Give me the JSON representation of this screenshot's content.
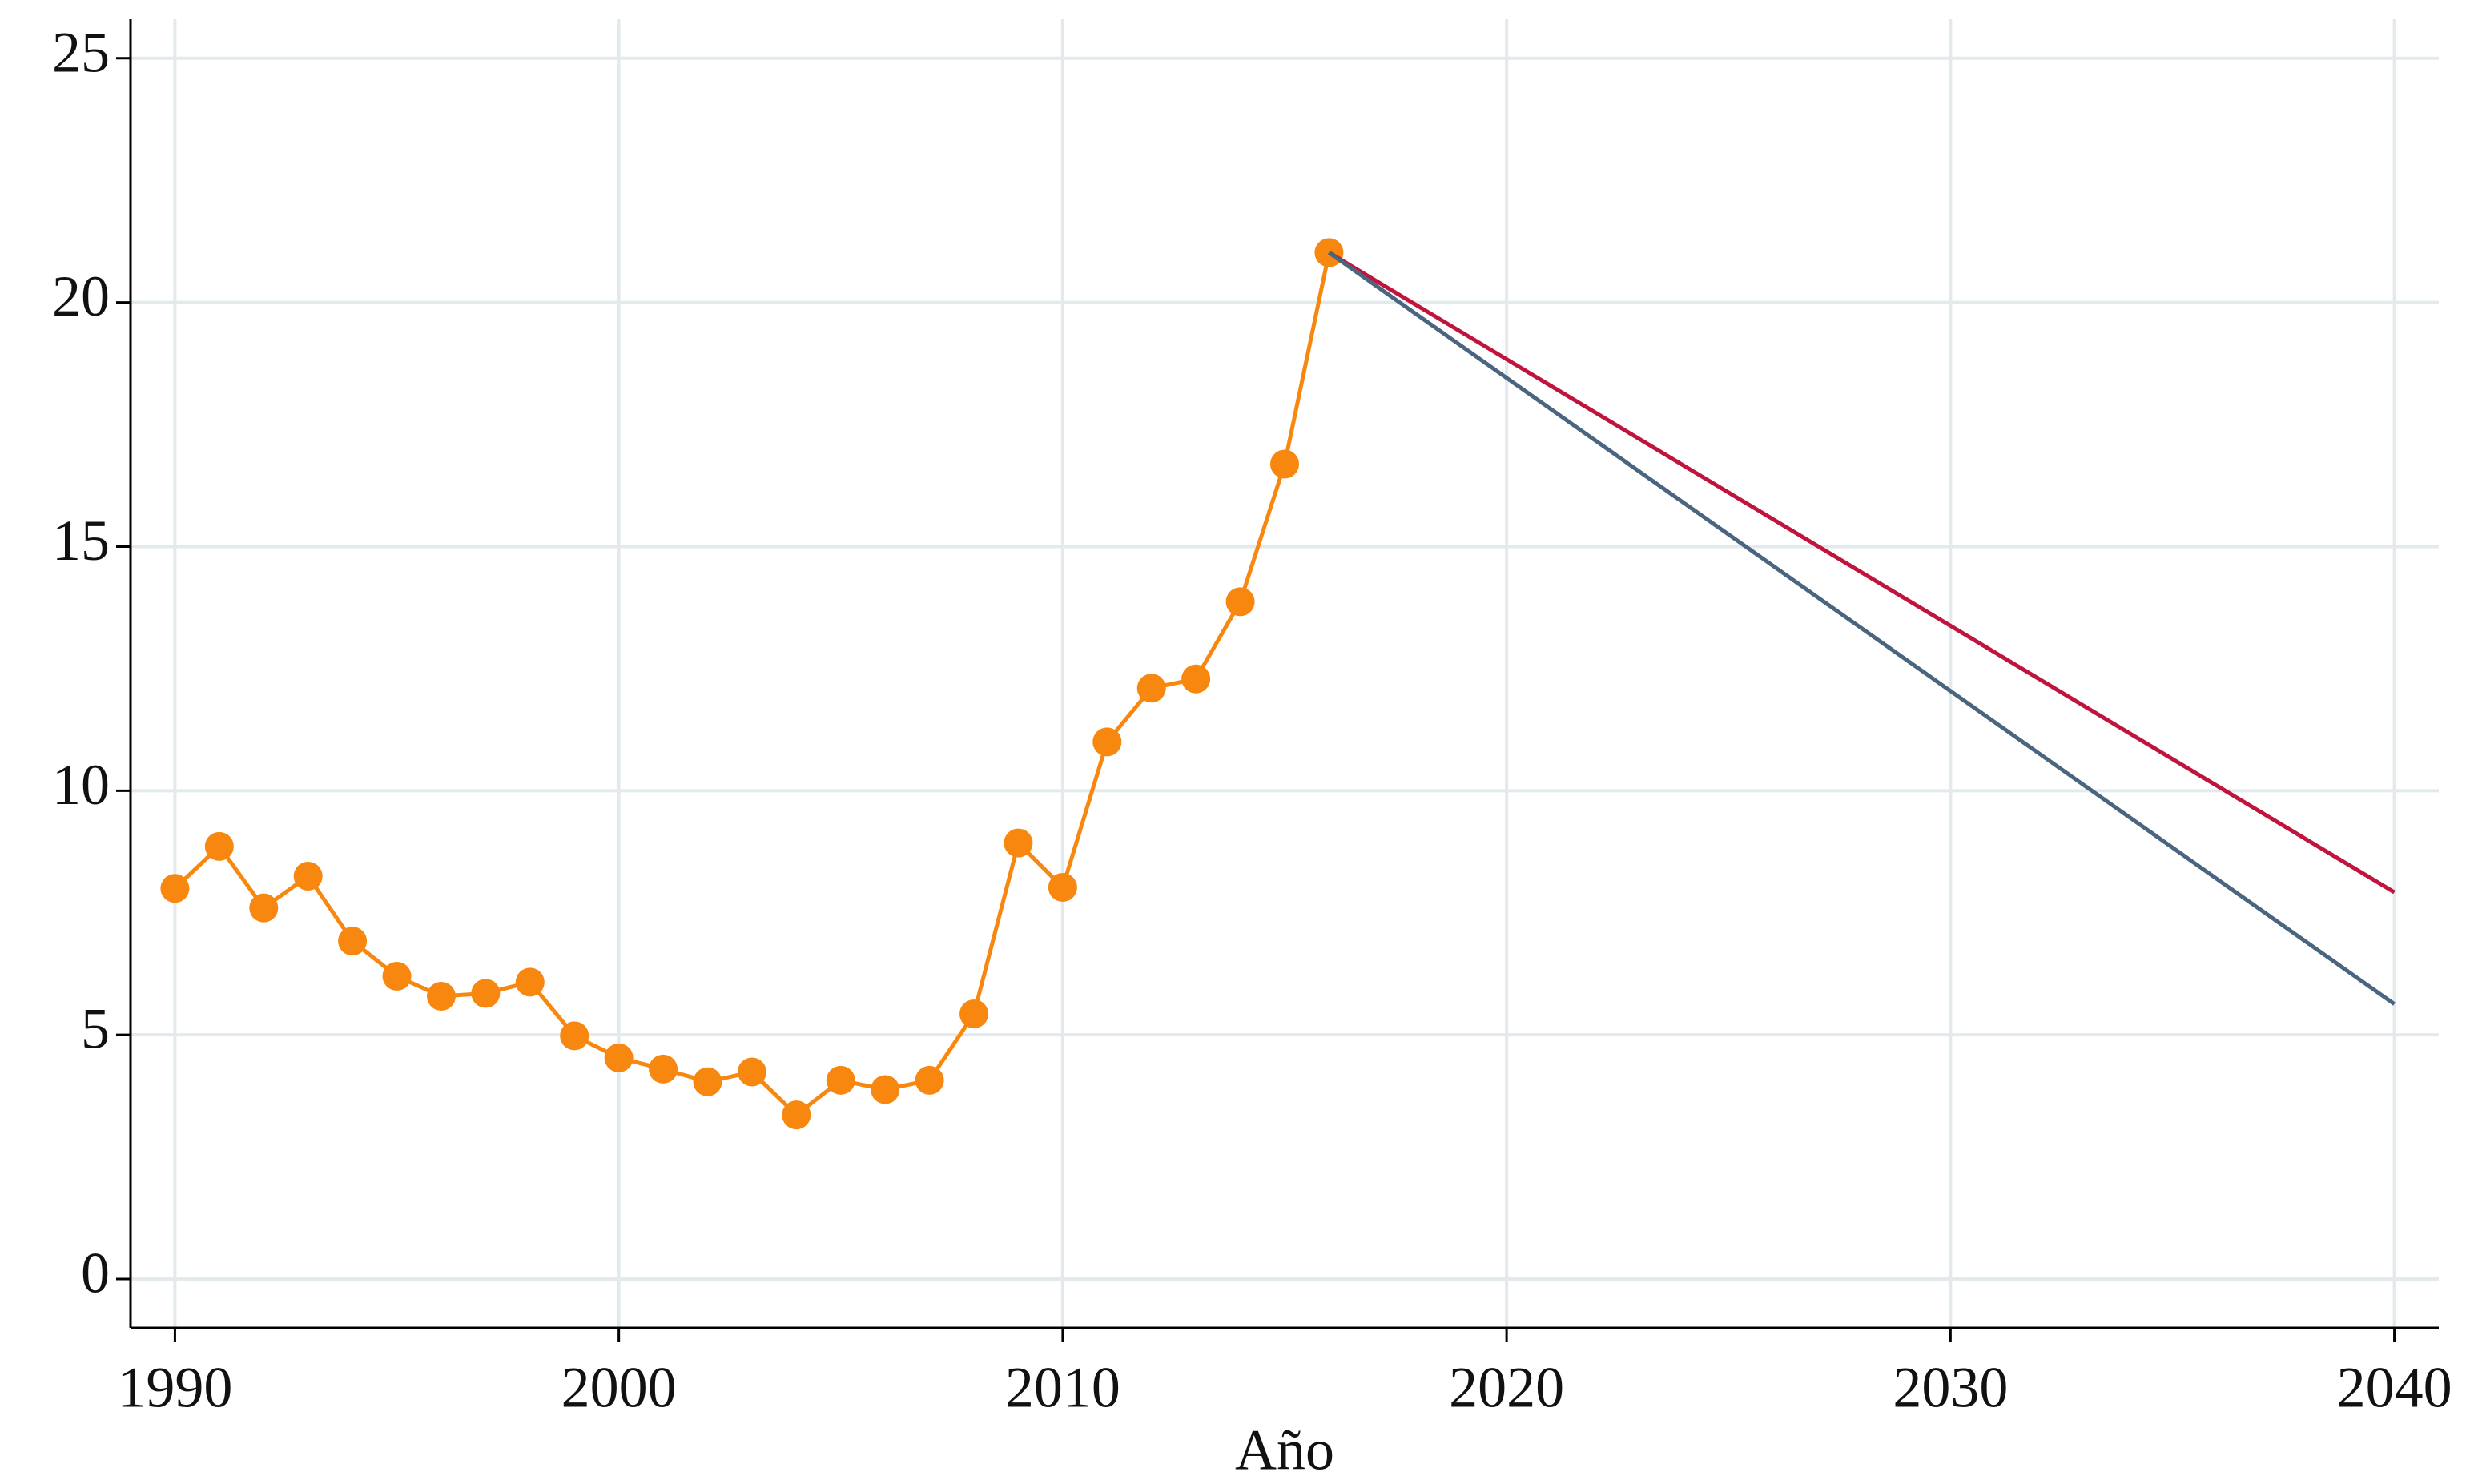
{
  "chart_data": {
    "type": "line",
    "x_label": "Año",
    "xlim": [
      1989,
      2041
    ],
    "ylim": [
      -1,
      25.8
    ],
    "xticks": [
      1990,
      2000,
      2010,
      2020,
      2030,
      2040
    ],
    "yticks": [
      0,
      5,
      10,
      15,
      20,
      25
    ],
    "grid": true,
    "series": [
      {
        "color": "#f7870f",
        "markers": true,
        "x": [
          1990,
          1991,
          1992,
          1993,
          1994,
          1995,
          1996,
          1997,
          1998,
          1999,
          2000,
          2001,
          2002,
          2003,
          2004,
          2005,
          2006,
          2007,
          2008,
          2009,
          2010,
          2011,
          2012,
          2013,
          2014,
          2015,
          2016
        ],
        "values": [
          8.0,
          8.86,
          7.6,
          8.25,
          6.92,
          6.2,
          5.79,
          5.85,
          6.08,
          4.98,
          4.53,
          4.3,
          4.04,
          4.24,
          3.36,
          4.07,
          3.88,
          4.07,
          5.43,
          8.93,
          8.02,
          11.0,
          12.1,
          12.29,
          13.87,
          16.69,
          21.02
        ]
      },
      {
        "color": "#c0143c",
        "markers": false,
        "x": [
          2016,
          2040
        ],
        "values": [
          21.02,
          7.92
        ]
      },
      {
        "color": "#4a6580",
        "markers": false,
        "x": [
          2016,
          2040
        ],
        "values": [
          21.02,
          5.63
        ]
      }
    ]
  }
}
